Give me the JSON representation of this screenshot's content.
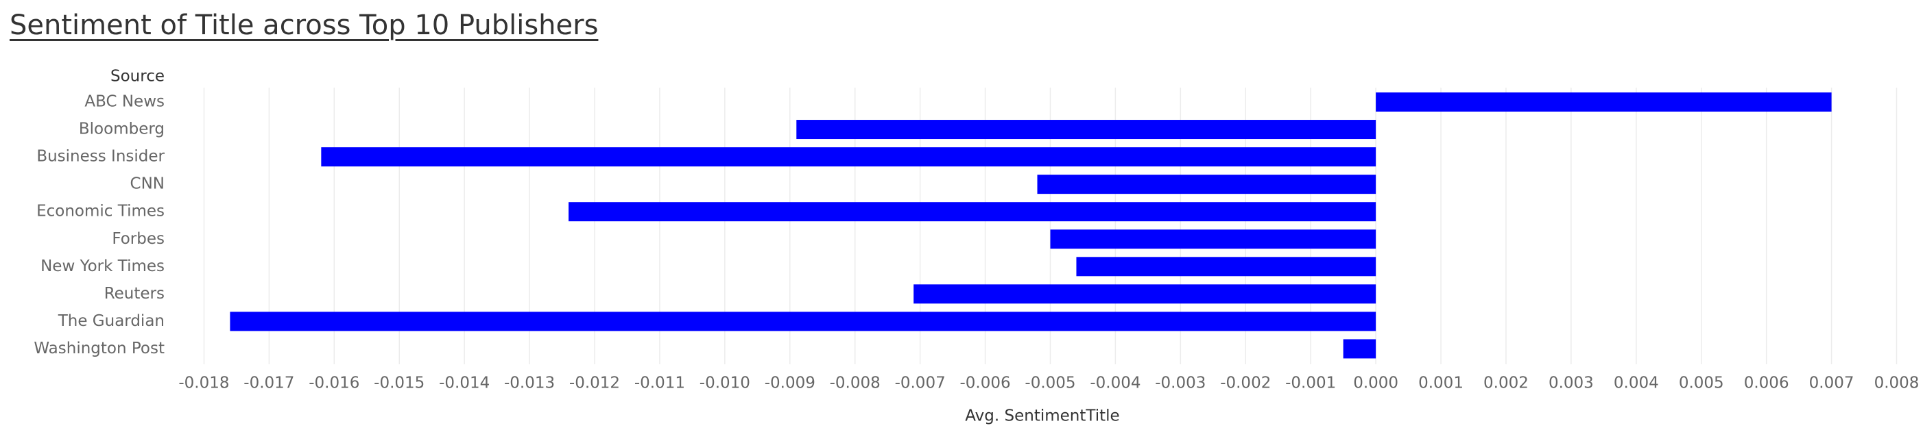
{
  "chart_data": {
    "type": "bar",
    "orientation": "horizontal",
    "title": "Sentiment of Title across Top 10 Publishers",
    "row_header": "Source",
    "xlabel": "Avg. SentimentTitle",
    "categories": [
      "ABC News",
      "Bloomberg",
      "Business Insider",
      "CNN",
      "Economic Times",
      "Forbes",
      "New York Times",
      "Reuters",
      "The Guardian",
      "Washington Post"
    ],
    "values": [
      0.007,
      -0.0089,
      -0.0162,
      -0.0052,
      -0.0124,
      -0.005,
      -0.0046,
      -0.0071,
      -0.0176,
      -0.0005
    ],
    "xlim": [
      -0.0185,
      0.0083
    ],
    "xticks": [
      -0.018,
      -0.017,
      -0.016,
      -0.015,
      -0.014,
      -0.013,
      -0.012,
      -0.011,
      -0.01,
      -0.009,
      -0.008,
      -0.007,
      -0.006,
      -0.005,
      -0.004,
      -0.003,
      -0.002,
      -0.001,
      0.0,
      0.001,
      0.002,
      0.003,
      0.004,
      0.005,
      0.006,
      0.007,
      0.008
    ],
    "grid": "vertical",
    "bar_color": "#0000ff",
    "legend": "none"
  }
}
